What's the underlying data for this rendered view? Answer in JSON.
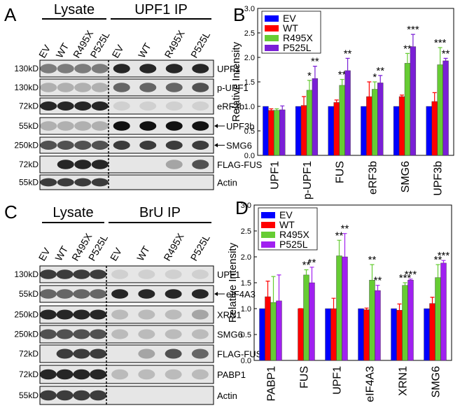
{
  "panel_labels": [
    "A",
    "B",
    "C",
    "D"
  ],
  "blots": [
    {
      "groups": [
        "Lysate",
        "UPF1 IP"
      ],
      "lanes": [
        "EV",
        "WT",
        "R495X",
        "P525L",
        "EV",
        "WT",
        "R495X",
        "P525L"
      ],
      "rows": [
        {
          "marker": "130kD",
          "label": "UPF1"
        },
        {
          "marker": "130kD",
          "label": "p-UPF1"
        },
        {
          "marker": "72kD",
          "label": "eRF3b"
        },
        {
          "marker": "55kD",
          "label": "UPF3b",
          "arrow": true
        },
        {
          "marker": "250kD",
          "label": "SMG6",
          "arrow": true
        },
        {
          "marker": "72kD",
          "label": "FLAG-FUS"
        },
        {
          "marker": "55kD",
          "label": "Actin"
        }
      ]
    },
    {
      "groups": [
        "Lysate",
        "BrU IP"
      ],
      "lanes": [
        "EV",
        "WT",
        "R495X",
        "P525L",
        "EV",
        "WT",
        "R495X",
        "P525L"
      ],
      "rows": [
        {
          "marker": "130kD",
          "label": "UPF1"
        },
        {
          "marker": "55kD",
          "label": "eIF4A3",
          "arrow": true
        },
        {
          "marker": "250kD",
          "label": "XRN1"
        },
        {
          "marker": "250kD",
          "label": "SMG6"
        },
        {
          "marker": "72kD",
          "label": "FLAG-FUS"
        },
        {
          "marker": "72kD",
          "label": "PABP1"
        },
        {
          "marker": "55kD",
          "label": "Actin"
        }
      ]
    }
  ],
  "chart_data": [
    {
      "type": "bar",
      "y_label": "Relative Intensity",
      "legend": "upper left",
      "categories": [
        "UPF1",
        "p-UPF1",
        "FUS",
        "eRF3b",
        "SMG6",
        "UPF3b"
      ],
      "ylim": [
        0,
        3
      ],
      "yticks": [
        {
          "value": 0,
          "label": "0.0"
        },
        {
          "value": 0.5,
          "label": "0.5"
        },
        {
          "value": 1,
          "label": "1.0"
        },
        {
          "value": 1.5,
          "label": "1.5"
        },
        {
          "value": 2,
          "label": "2.0"
        },
        {
          "value": 2.5,
          "label": "2.5"
        },
        {
          "value": 3,
          "label": "3.0"
        }
      ],
      "series": [
        {
          "name": "EV",
          "color": "#0000ff",
          "values": [
            1,
            1,
            1,
            1,
            1,
            1
          ]
        },
        {
          "name": "WT",
          "color": "#ff0000",
          "values": [
            0.92,
            1.02,
            1.08,
            1.2,
            1.2,
            1.1
          ],
          "errors": [
            0.03,
            0.18,
            0.05,
            0.3,
            0.03,
            0.18
          ]
        },
        {
          "name": "R495X",
          "color": "#66cc33",
          "values": [
            0.92,
            1.33,
            1.43,
            1.35,
            1.88,
            1.85
          ],
          "errors": [
            0.03,
            0.2,
            0.12,
            0.15,
            0.2,
            0.35
          ],
          "annotations": [
            null,
            "*",
            "**",
            "*",
            "**",
            "***"
          ]
        },
        {
          "name": "P525L",
          "color": "#7a1fd6",
          "values": [
            0.93,
            1.57,
            1.73,
            1.48,
            2.22,
            1.93
          ],
          "errors": [
            0.08,
            0.25,
            0.25,
            0.15,
            0.25,
            0.05
          ],
          "annotations": [
            null,
            "**",
            "**",
            "**",
            "***",
            "**"
          ]
        }
      ]
    },
    {
      "type": "bar",
      "y_label": "Relative Intensity",
      "legend": "upper left",
      "categories": [
        "PABP1",
        "FUS",
        "UPF1",
        "eIF4A3",
        "XRN1",
        "SMG6"
      ],
      "ylim": [
        0,
        3
      ],
      "yticks": [
        {
          "value": 0,
          "label": "0.0"
        },
        {
          "value": 0.5,
          "label": "0.5"
        },
        {
          "value": 1,
          "label": "1.0"
        },
        {
          "value": 1.5,
          "label": "1.5"
        },
        {
          "value": 2,
          "label": "2.0"
        },
        {
          "value": 2.5,
          "label": "2.5"
        },
        {
          "value": 3,
          "label": "3.0"
        }
      ],
      "series": [
        {
          "name": "EV",
          "color": "#0000ff",
          "values": [
            1,
            null,
            1,
            1,
            1,
            1
          ]
        },
        {
          "name": "WT",
          "color": "#ff0000",
          "values": [
            1.23,
            1,
            1,
            0.98,
            0.97,
            1.1
          ],
          "errors": [
            0.3,
            0,
            0.2,
            0.03,
            0.12,
            0.12
          ]
        },
        {
          "name": "R495X",
          "color": "#66cc33",
          "values": [
            1.12,
            1.65,
            2.02,
            1.55,
            1.45,
            1.6
          ],
          "errors": [
            0.5,
            0.1,
            0.3,
            0.3,
            0.05,
            0.25
          ],
          "annotations": [
            null,
            "**",
            "**",
            "**",
            "***",
            "**"
          ]
        },
        {
          "name": "P525L",
          "color": "#a020f0",
          "values": [
            1.15,
            1.5,
            2,
            1.35,
            1.55,
            1.88
          ],
          "errors": [
            0.5,
            0.3,
            0.45,
            0.1,
            0.02,
            0.05
          ],
          "annotations": [
            null,
            "**",
            "**",
            "**",
            "***",
            "***"
          ]
        }
      ]
    }
  ]
}
